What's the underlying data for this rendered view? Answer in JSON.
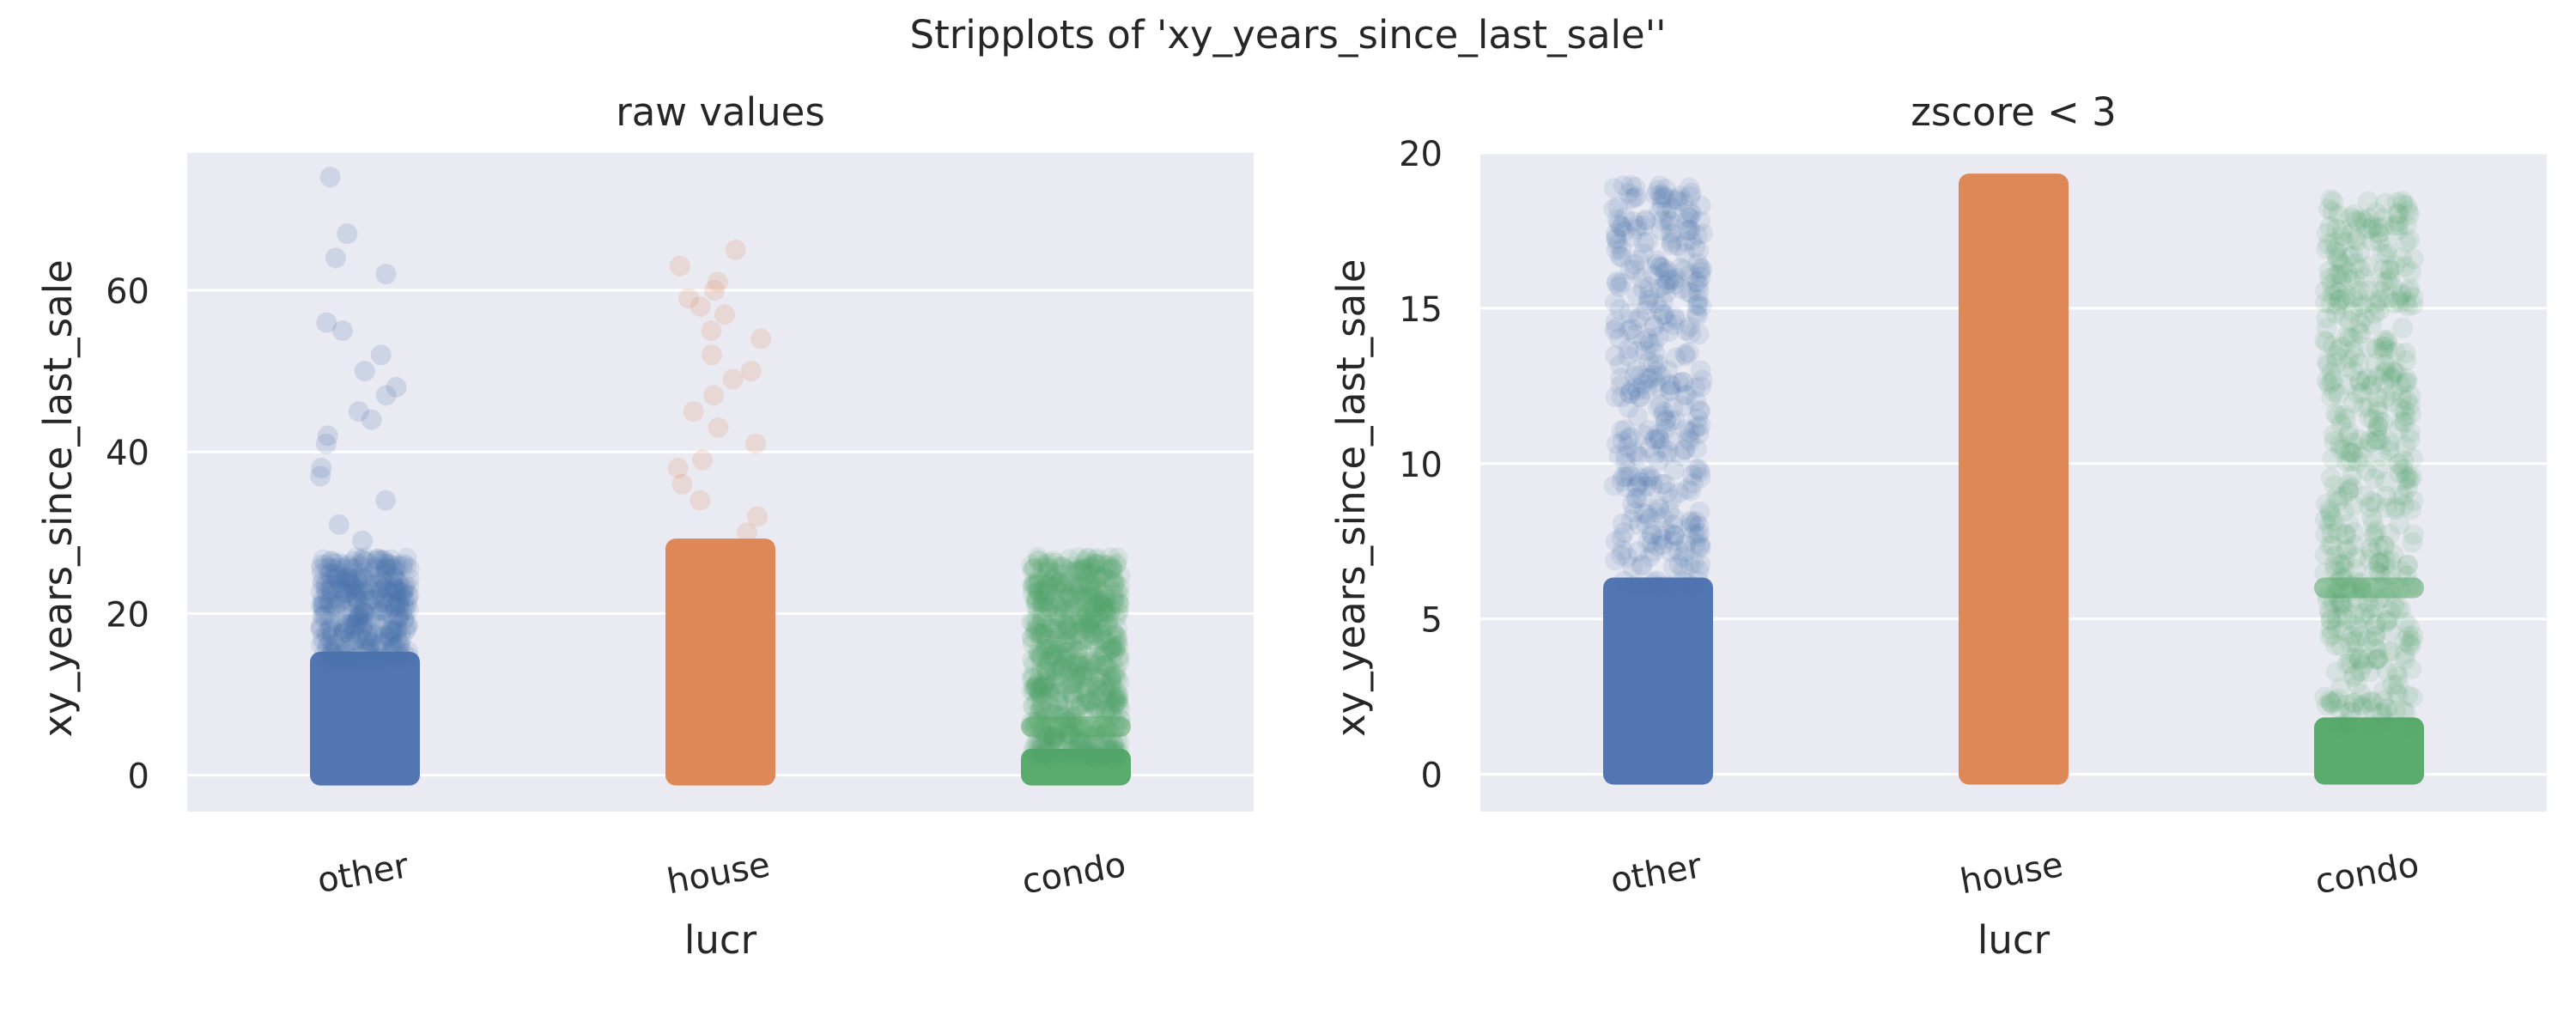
{
  "figure": {
    "title": "Stripplots of 'xy_years_since_last_sale''"
  },
  "colors": {
    "other": "#4c72b0",
    "house": "#dd8452",
    "condo": "#55a868",
    "axes_background": "#eaeaf2",
    "grid": "#ffffff"
  },
  "chart_data": [
    {
      "type": "scatter",
      "subtype": "stripplot",
      "title": "raw values",
      "xlabel": "lucr",
      "ylabel": "xy_years_since_last_sale",
      "categories": [
        "other",
        "house",
        "condo"
      ],
      "ylim": [
        -4.5,
        77
      ],
      "yticks": [
        "0",
        "20",
        "40",
        "60"
      ],
      "ytick_values": [
        0,
        20,
        40,
        60
      ],
      "grid": true,
      "series": [
        {
          "category": "other",
          "dense_range": [
            0,
            27
          ],
          "main_mass_max": 14,
          "band_at": 6,
          "max": 74,
          "outliers": [
            29,
            31,
            34,
            37,
            38,
            41,
            42,
            44,
            45,
            47,
            48,
            50,
            52,
            55,
            56,
            62,
            64,
            67,
            74
          ]
        },
        {
          "category": "house",
          "dense_range": [
            0,
            28
          ],
          "main_mass_max": 28,
          "band_at": 6,
          "max": 65,
          "outliers": [
            30,
            32,
            34,
            36,
            38,
            39,
            41,
            43,
            45,
            47,
            49,
            50,
            52,
            54,
            55,
            57,
            58,
            59,
            60,
            61,
            63,
            65
          ]
        },
        {
          "category": "condo",
          "dense_range": [
            0,
            27
          ],
          "main_mass_max": 2,
          "band_at": 6,
          "max": 27,
          "outliers": []
        }
      ]
    },
    {
      "type": "scatter",
      "subtype": "stripplot",
      "title": "zscore < 3",
      "xlabel": "lucr",
      "ylabel": "xy_years_since_last_sale",
      "categories": [
        "other",
        "house",
        "condo"
      ],
      "ylim": [
        -1.2,
        20
      ],
      "yticks": [
        "0",
        "5",
        "10",
        "15",
        "20"
      ],
      "ytick_values": [
        0,
        5,
        10,
        15,
        20
      ],
      "grid": true,
      "series": [
        {
          "category": "other",
          "dense_range": [
            0,
            19
          ],
          "main_mass_max": 6,
          "band_at": 6,
          "max": 19,
          "outliers": []
        },
        {
          "category": "house",
          "dense_range": [
            0,
            19
          ],
          "main_mass_max": 19,
          "band_at": 6,
          "max": 19,
          "outliers": []
        },
        {
          "category": "condo",
          "dense_range": [
            0,
            18.5
          ],
          "main_mass_max": 1.5,
          "band_at": 6,
          "max": 18.5,
          "outliers": []
        }
      ]
    }
  ]
}
